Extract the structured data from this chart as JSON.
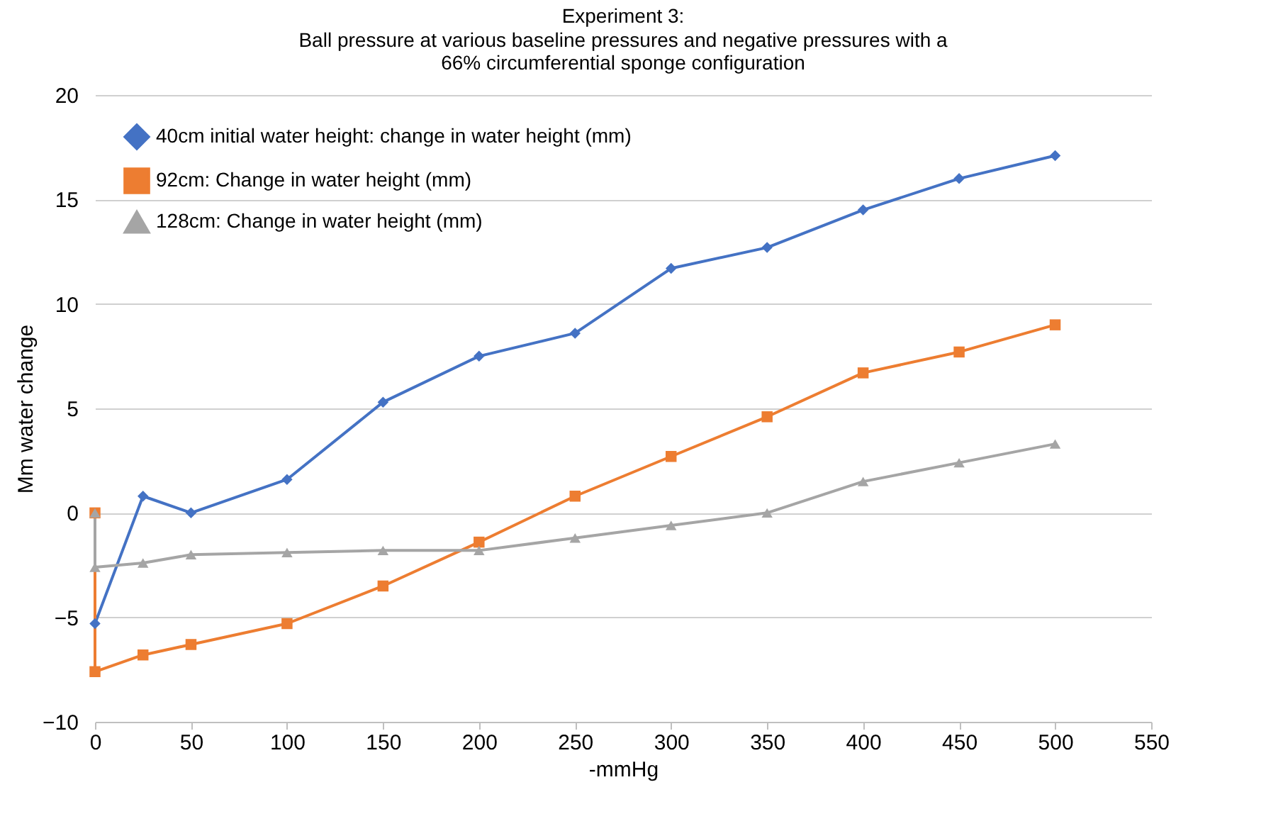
{
  "chart_data": {
    "type": "line",
    "title": "Experiment 3:",
    "subtitle": "Ball pressure at various baseline pressures and negative pressures with a 66% circumferential sponge configuration",
    "xlabel": "-mmHg",
    "ylabel": "Mm water change",
    "series": [
      {
        "name": "40cm initial water height: change in water height (mm)",
        "color": "#4472c4",
        "marker": "diamond",
        "x": [
          0,
          25,
          50,
          100,
          150,
          200,
          250,
          300,
          350,
          400,
          450,
          500
        ],
        "values": [
          -5.3,
          0.8,
          0,
          1.6,
          5.3,
          7.5,
          8.6,
          11.7,
          12.7,
          14.5,
          16,
          17.1
        ]
      },
      {
        "name": "92cm: Change in water height (mm)",
        "color": "#ed7d31",
        "marker": "square",
        "x": [
          0,
          0,
          25,
          50,
          100,
          150,
          200,
          250,
          300,
          350,
          400,
          450,
          500
        ],
        "values": [
          0,
          -7.6,
          -6.8,
          -6.3,
          -5.3,
          -3.5,
          -1.4,
          0.8,
          2.7,
          4.6,
          6.7,
          7.7,
          9.0
        ]
      },
      {
        "name": "128cm: Change in water height (mm)",
        "color": "#a5a5a5",
        "marker": "triangle",
        "x": [
          0,
          0,
          25,
          50,
          100,
          150,
          200,
          250,
          300,
          350,
          400,
          450,
          500
        ],
        "values": [
          0,
          -2.6,
          -2.4,
          -2.0,
          -1.9,
          -1.8,
          -1.8,
          -1.2,
          -0.6,
          0,
          1.5,
          2.4,
          3.3
        ]
      }
    ],
    "xlim": [
      0,
      550
    ],
    "xticks": [
      0,
      50,
      100,
      150,
      200,
      250,
      300,
      350,
      400,
      450,
      500,
      550
    ],
    "ylim": [
      -10,
      20
    ],
    "yticks": [
      -10,
      -5,
      0,
      5,
      10,
      15,
      20
    ],
    "grid": "y",
    "legend": "top left"
  }
}
